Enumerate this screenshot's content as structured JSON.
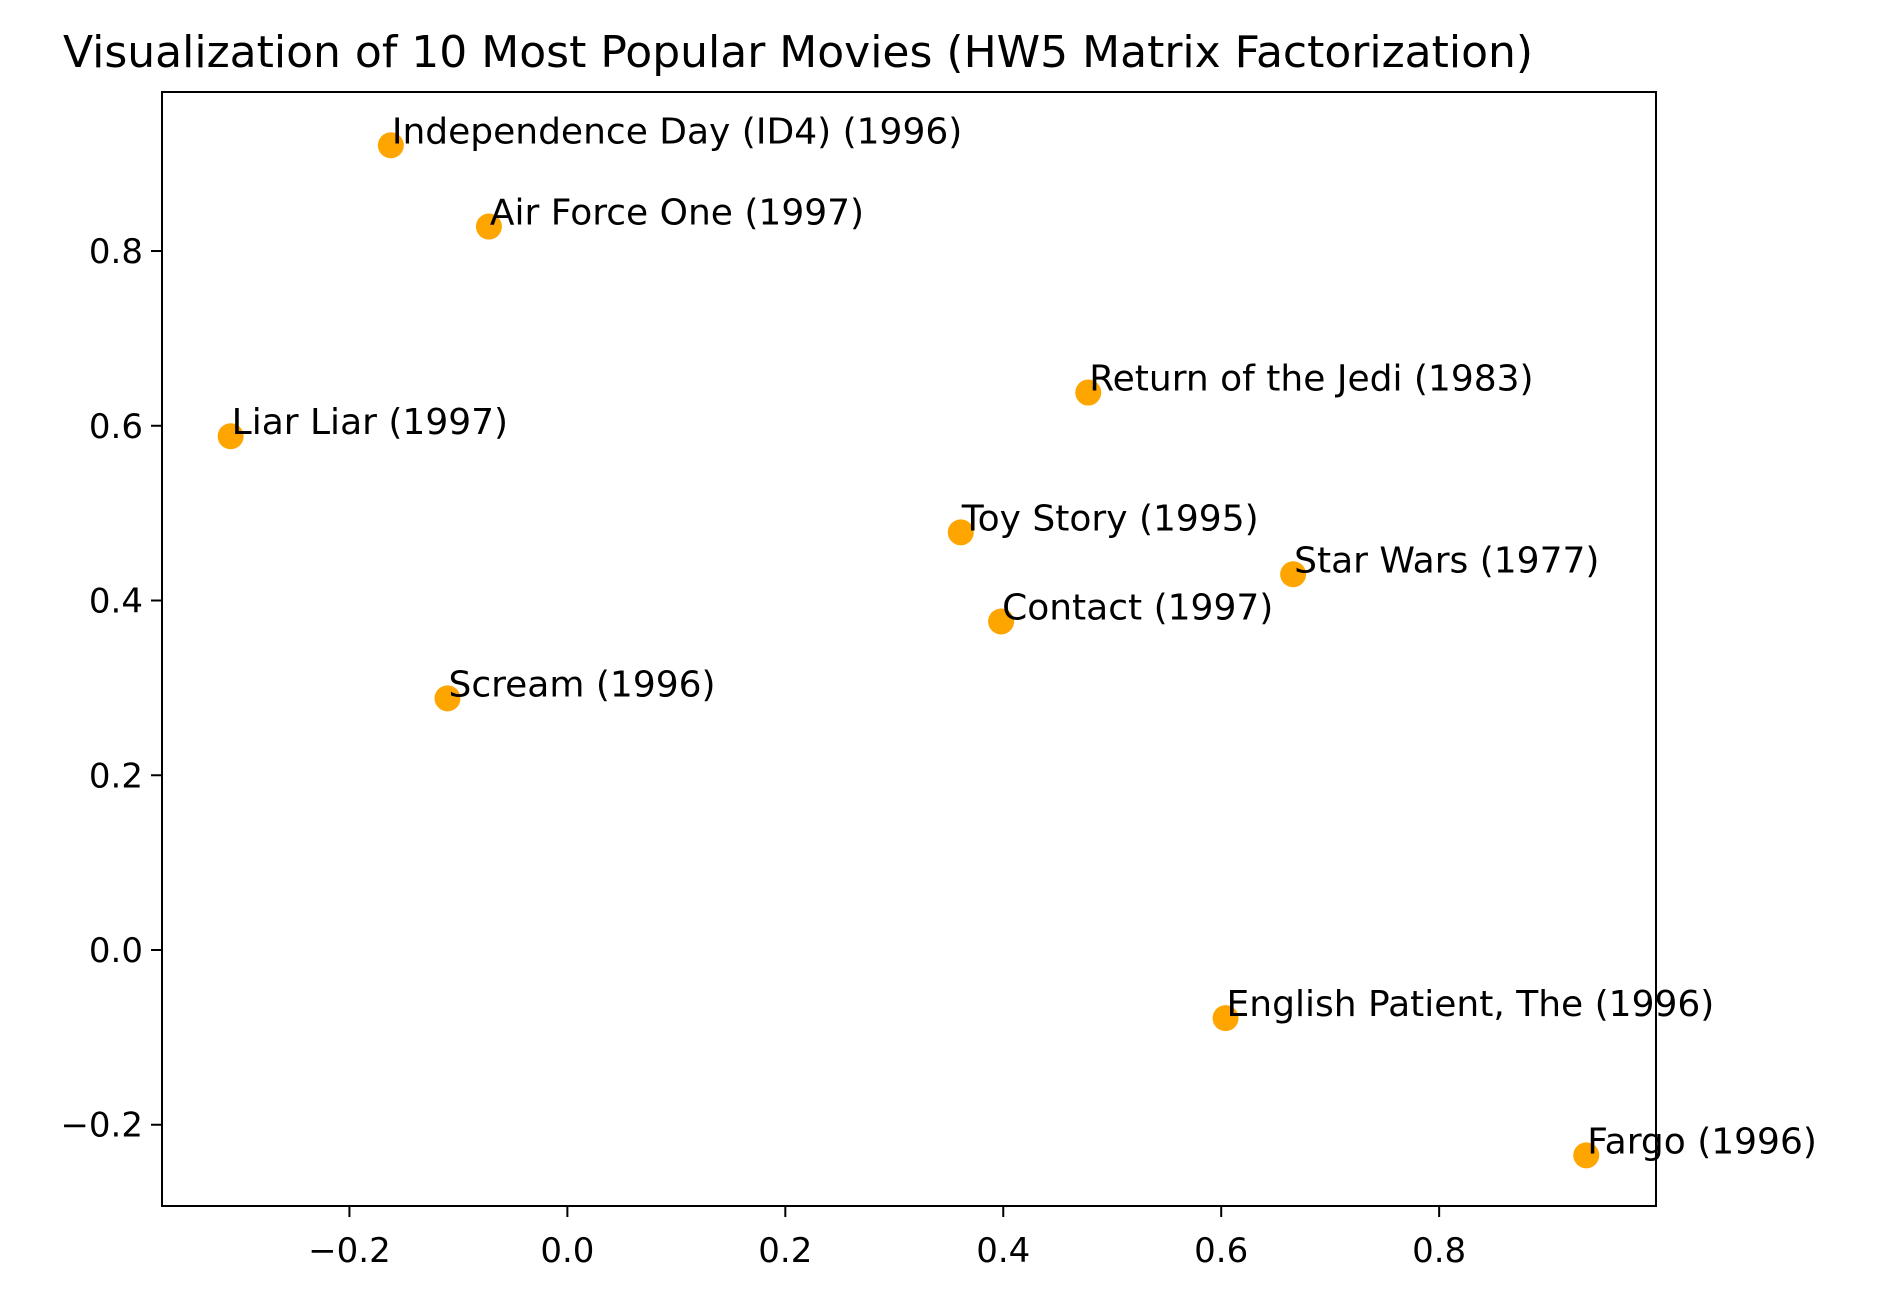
{
  "colors": {
    "marker": "#ffa500",
    "axis": "#000000",
    "background": "#ffffff"
  },
  "chart_data": {
    "type": "scatter",
    "title": "Visualization of 10 Most Popular Movies (HW5 Matrix Factorization)",
    "xlabel": "",
    "ylabel": "",
    "xlim": [
      -0.372,
      0.999
    ],
    "ylim": [
      -0.293,
      0.982
    ],
    "grid": false,
    "x_ticks": [
      {
        "value": -0.2,
        "label": "−0.2"
      },
      {
        "value": 0.0,
        "label": "0.0"
      },
      {
        "value": 0.2,
        "label": "0.2"
      },
      {
        "value": 0.4,
        "label": "0.4"
      },
      {
        "value": 0.6,
        "label": "0.6"
      },
      {
        "value": 0.8,
        "label": "0.8"
      }
    ],
    "y_ticks": [
      {
        "value": -0.2,
        "label": "−0.2"
      },
      {
        "value": 0.0,
        "label": "0.0"
      },
      {
        "value": 0.2,
        "label": "0.2"
      },
      {
        "value": 0.4,
        "label": "0.4"
      },
      {
        "value": 0.6,
        "label": "0.6"
      },
      {
        "value": 0.8,
        "label": "0.8"
      }
    ],
    "points": [
      {
        "label": "Independence Day (ID4) (1996)",
        "x": -0.162,
        "y": 0.921
      },
      {
        "label": "Air Force One (1997)",
        "x": -0.072,
        "y": 0.828
      },
      {
        "label": "Return of the Jedi (1983)",
        "x": 0.478,
        "y": 0.638
      },
      {
        "label": "Liar Liar (1997)",
        "x": -0.309,
        "y": 0.588
      },
      {
        "label": "Toy Story (1995)",
        "x": 0.361,
        "y": 0.478
      },
      {
        "label": "Star Wars (1977)",
        "x": 0.666,
        "y": 0.43
      },
      {
        "label": "Contact (1997)",
        "x": 0.398,
        "y": 0.376
      },
      {
        "label": "Scream (1996)",
        "x": -0.11,
        "y": 0.288
      },
      {
        "label": "English Patient, The (1996)",
        "x": 0.604,
        "y": -0.078
      },
      {
        "label": "Fargo (1996)",
        "x": 0.935,
        "y": -0.235
      }
    ]
  }
}
